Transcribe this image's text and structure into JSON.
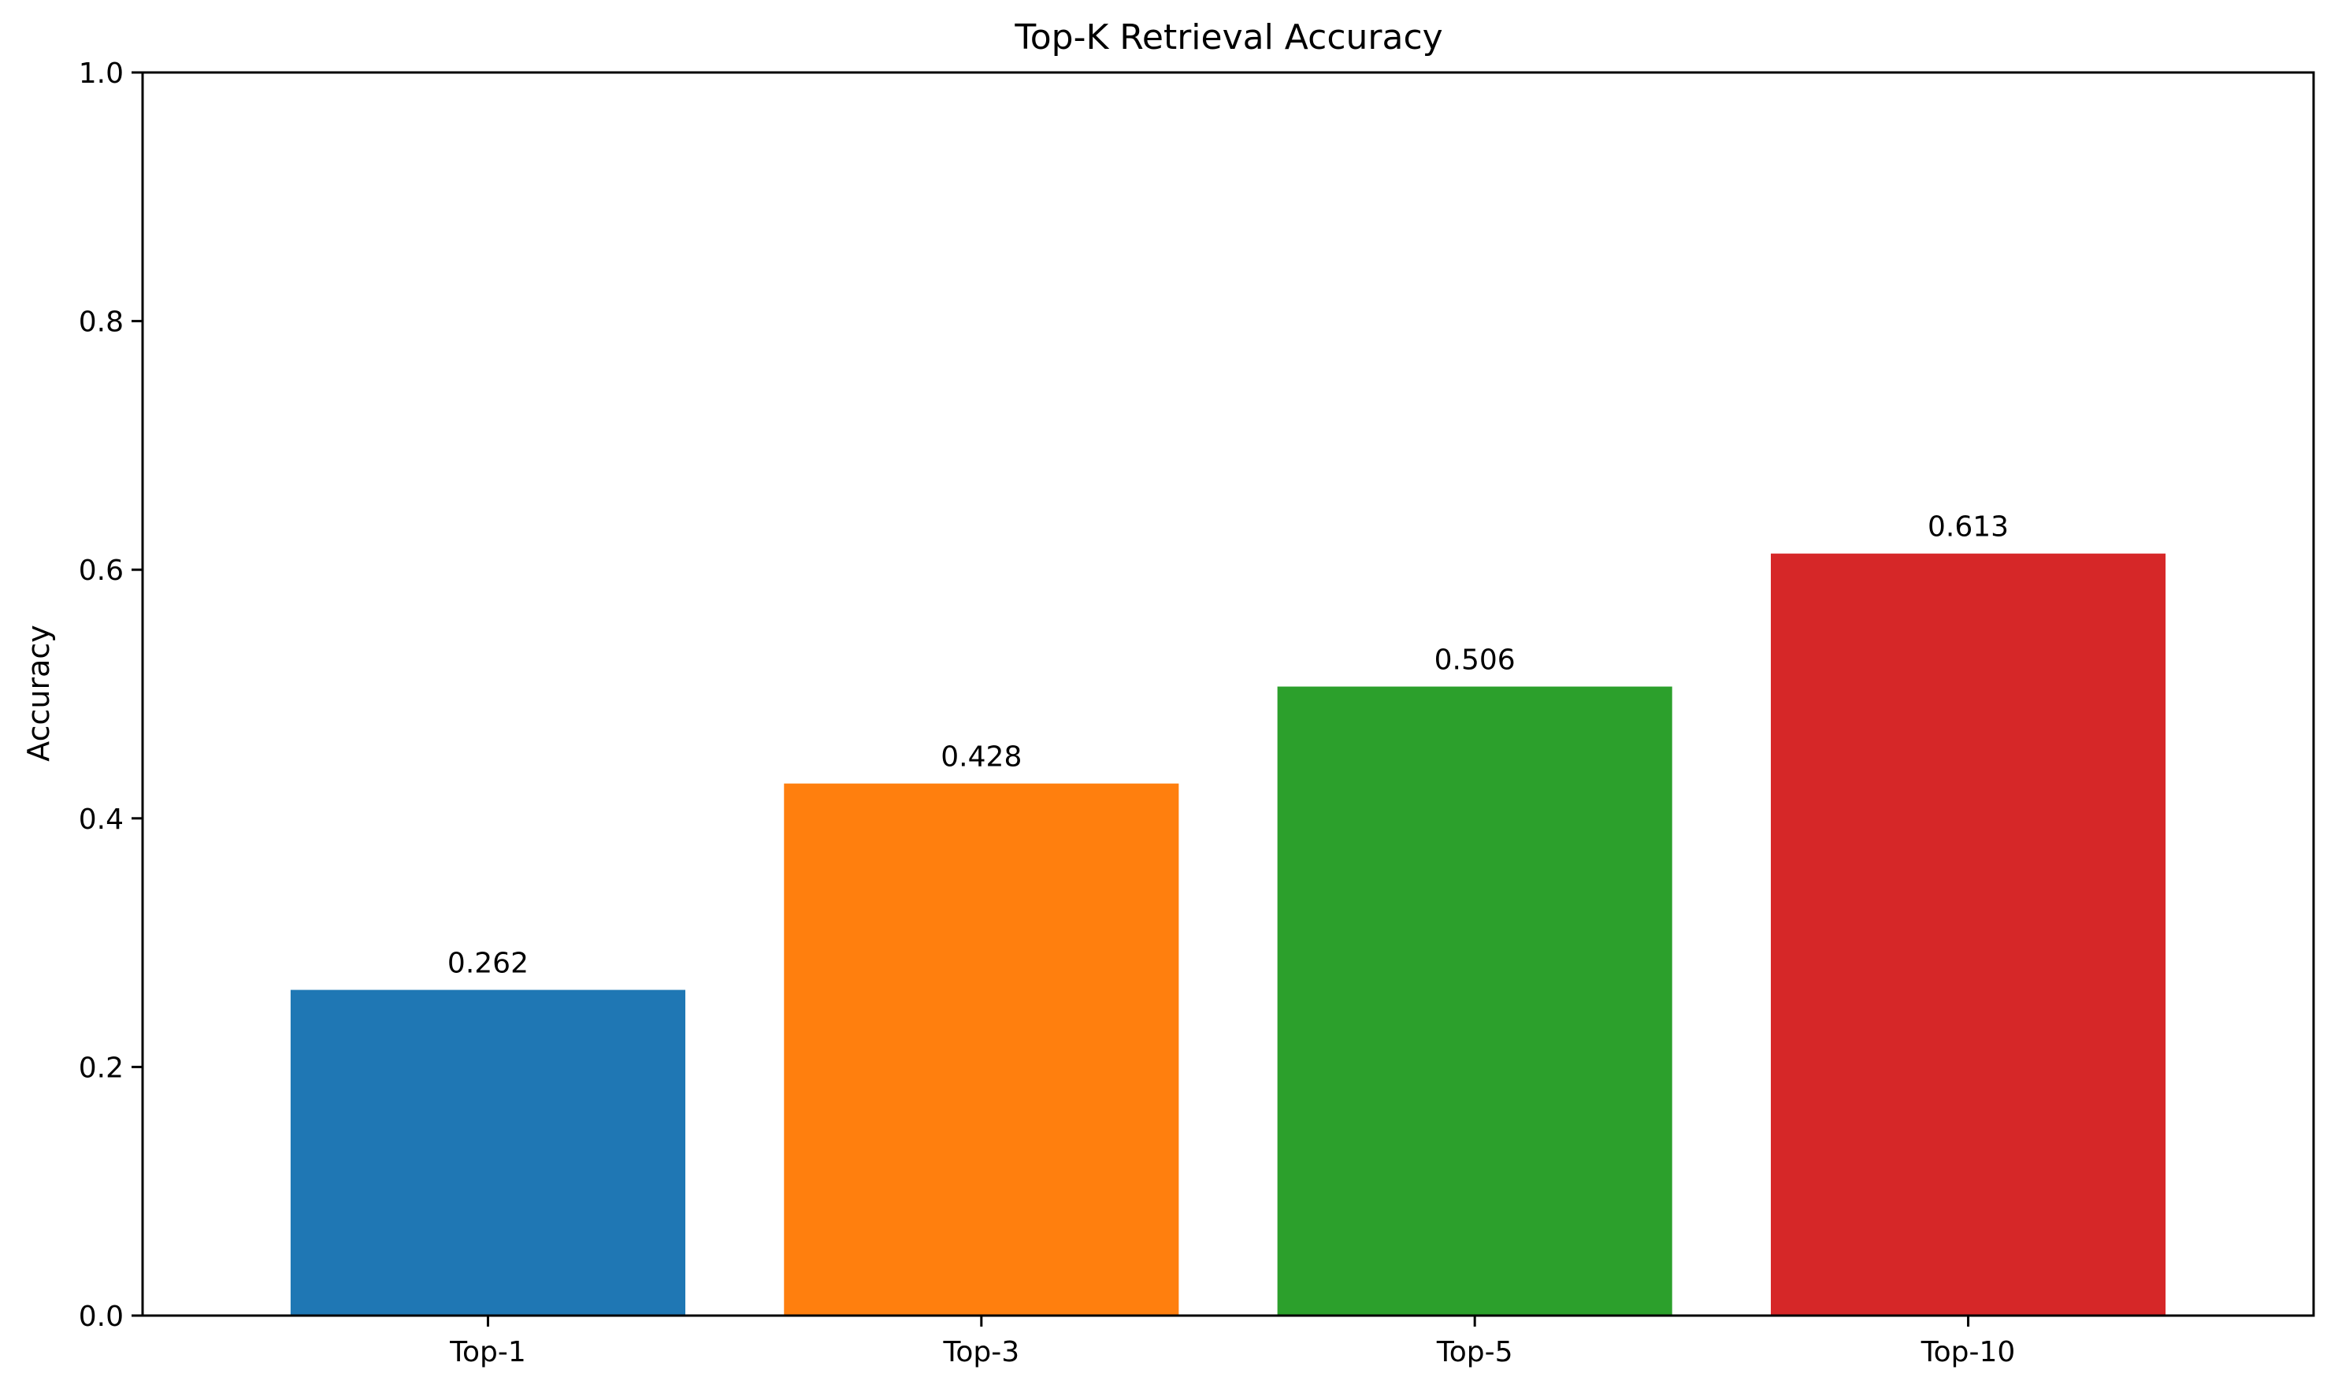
{
  "chart_data": {
    "type": "bar",
    "title": "Top-K Retrieval Accuracy",
    "xlabel": "",
    "ylabel": "Accuracy",
    "categories": [
      "Top-1",
      "Top-3",
      "Top-5",
      "Top-10"
    ],
    "values": [
      0.262,
      0.428,
      0.506,
      0.613
    ],
    "value_labels": [
      "0.262",
      "0.428",
      "0.506",
      "0.613"
    ],
    "bar_colors": [
      "#1f77b4",
      "#ff7f0e",
      "#2ca02c",
      "#d62728"
    ],
    "ylim": [
      0,
      1.0
    ],
    "yticks": [
      0.0,
      0.2,
      0.4,
      0.6,
      0.8,
      1.0
    ],
    "ytick_labels": [
      "0.0",
      "0.2",
      "0.4",
      "0.6",
      "0.8",
      "1.0"
    ],
    "grid": false,
    "legend": "none"
  }
}
